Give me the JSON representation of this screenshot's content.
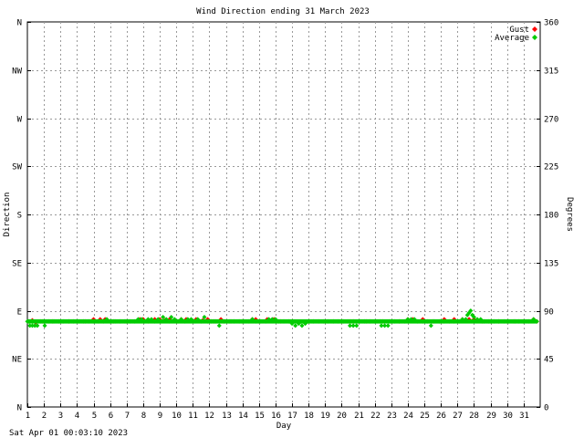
{
  "chart_data": {
    "type": "scatter",
    "title": "Wind Direction ending 31 March 2023",
    "xlabel": "Day",
    "ylabel_left": "Direction",
    "ylabel_right": "Degrees",
    "footer": "Sat Apr 01 00:03:10 2023",
    "xlim": [
      1,
      32
    ],
    "ylim": [
      0,
      360
    ],
    "x_ticks": [
      1,
      2,
      3,
      4,
      5,
      6,
      7,
      8,
      9,
      10,
      11,
      12,
      13,
      14,
      15,
      16,
      17,
      18,
      19,
      20,
      21,
      22,
      23,
      24,
      25,
      26,
      27,
      28,
      29,
      30,
      31
    ],
    "y_ticks_left": [
      {
        "value": 0,
        "label": "N"
      },
      {
        "value": 45,
        "label": "NE"
      },
      {
        "value": 90,
        "label": "E"
      },
      {
        "value": 135,
        "label": "SE"
      },
      {
        "value": 180,
        "label": "S"
      },
      {
        "value": 225,
        "label": "SW"
      },
      {
        "value": 270,
        "label": "W"
      },
      {
        "value": 315,
        "label": "NW"
      },
      {
        "value": 360,
        "label": "N"
      }
    ],
    "y_ticks_right": [
      0,
      45,
      90,
      135,
      180,
      225,
      270,
      315,
      360
    ],
    "grid": true,
    "legend_position": "top-right",
    "series": [
      {
        "name": "Gust",
        "color": "#ff0000",
        "points": [
          [
            1.1,
            80
          ],
          [
            1.3,
            81
          ],
          [
            1.5,
            79
          ],
          [
            1.9,
            80
          ],
          [
            2.5,
            80
          ],
          [
            3.5,
            80
          ],
          [
            4.5,
            80
          ],
          [
            5.0,
            82
          ],
          [
            5.4,
            82
          ],
          [
            5.7,
            82
          ],
          [
            6.2,
            80
          ],
          [
            7.0,
            80
          ],
          [
            7.8,
            82
          ],
          [
            8.0,
            82
          ],
          [
            8.3,
            80
          ],
          [
            8.5,
            81
          ],
          [
            8.7,
            82
          ],
          [
            9.0,
            82
          ],
          [
            9.3,
            81
          ],
          [
            9.6,
            82
          ],
          [
            10.0,
            80
          ],
          [
            10.3,
            82
          ],
          [
            10.6,
            82
          ],
          [
            10.9,
            81
          ],
          [
            11.2,
            82
          ],
          [
            11.6,
            81
          ],
          [
            11.9,
            82
          ],
          [
            12.3,
            80
          ],
          [
            12.7,
            82
          ],
          [
            13.3,
            80
          ],
          [
            14.0,
            80
          ],
          [
            14.6,
            82
          ],
          [
            14.8,
            82
          ],
          [
            15.0,
            80
          ],
          [
            15.5,
            82
          ],
          [
            15.9,
            82
          ],
          [
            16.3,
            80
          ],
          [
            17.0,
            80
          ],
          [
            18.0,
            80
          ],
          [
            19.0,
            80
          ],
          [
            20.0,
            80
          ],
          [
            20.5,
            80
          ],
          [
            20.7,
            80
          ],
          [
            21.5,
            80
          ],
          [
            22.5,
            80
          ],
          [
            23.5,
            80
          ],
          [
            24.0,
            82
          ],
          [
            24.3,
            82
          ],
          [
            24.9,
            82
          ],
          [
            25.5,
            80
          ],
          [
            26.2,
            82
          ],
          [
            26.8,
            82
          ],
          [
            27.3,
            82
          ],
          [
            27.7,
            82
          ],
          [
            28.0,
            82
          ],
          [
            28.5,
            80
          ],
          [
            29.0,
            80
          ],
          [
            29.5,
            80
          ],
          [
            30.0,
            80
          ],
          [
            30.5,
            80
          ],
          [
            31.0,
            80
          ],
          [
            31.6,
            82
          ],
          [
            31.8,
            80
          ]
        ]
      },
      {
        "name": "Average",
        "color": "#00cc00",
        "points": [
          [
            1.0,
            80
          ],
          [
            1.15,
            76
          ],
          [
            1.3,
            76
          ],
          [
            1.45,
            76
          ],
          [
            1.6,
            76
          ],
          [
            1.8,
            80
          ],
          [
            2.0,
            80
          ],
          [
            2.05,
            76
          ],
          [
            2.3,
            80
          ],
          [
            2.6,
            80
          ],
          [
            2.9,
            80
          ],
          [
            3.2,
            80
          ],
          [
            3.5,
            80
          ],
          [
            3.8,
            80
          ],
          [
            4.1,
            80
          ],
          [
            4.4,
            80
          ],
          [
            4.7,
            80
          ],
          [
            5.0,
            80
          ],
          [
            5.3,
            80
          ],
          [
            5.6,
            80
          ],
          [
            5.8,
            82
          ],
          [
            6.0,
            80
          ],
          [
            6.3,
            80
          ],
          [
            6.6,
            80
          ],
          [
            6.9,
            80
          ],
          [
            7.2,
            80
          ],
          [
            7.5,
            80
          ],
          [
            7.7,
            82
          ],
          [
            7.9,
            82
          ],
          [
            8.1,
            80
          ],
          [
            8.3,
            82
          ],
          [
            8.5,
            82
          ],
          [
            8.7,
            80
          ],
          [
            8.9,
            82
          ],
          [
            9.1,
            80
          ],
          [
            9.2,
            84
          ],
          [
            9.4,
            82
          ],
          [
            9.6,
            80
          ],
          [
            9.7,
            84
          ],
          [
            9.9,
            82
          ],
          [
            10.1,
            80
          ],
          [
            10.3,
            82
          ],
          [
            10.5,
            80
          ],
          [
            10.7,
            82
          ],
          [
            10.9,
            82
          ],
          [
            11.1,
            80
          ],
          [
            11.3,
            82
          ],
          [
            11.5,
            80
          ],
          [
            11.7,
            84
          ],
          [
            11.9,
            80
          ],
          [
            12.1,
            80
          ],
          [
            12.4,
            80
          ],
          [
            12.6,
            76
          ],
          [
            12.9,
            80
          ],
          [
            13.2,
            80
          ],
          [
            13.5,
            80
          ],
          [
            13.8,
            80
          ],
          [
            14.1,
            80
          ],
          [
            14.4,
            80
          ],
          [
            14.6,
            82
          ],
          [
            14.8,
            80
          ],
          [
            15.1,
            80
          ],
          [
            15.4,
            80
          ],
          [
            15.6,
            82
          ],
          [
            15.8,
            82
          ],
          [
            16.0,
            82
          ],
          [
            16.2,
            80
          ],
          [
            16.5,
            80
          ],
          [
            16.8,
            80
          ],
          [
            17.0,
            78
          ],
          [
            17.2,
            76
          ],
          [
            17.4,
            78
          ],
          [
            17.6,
            76
          ],
          [
            17.8,
            78
          ],
          [
            18.0,
            80
          ],
          [
            18.3,
            80
          ],
          [
            18.6,
            80
          ],
          [
            18.9,
            80
          ],
          [
            19.2,
            80
          ],
          [
            19.5,
            80
          ],
          [
            19.8,
            80
          ],
          [
            20.1,
            80
          ],
          [
            20.4,
            80
          ],
          [
            20.5,
            76
          ],
          [
            20.7,
            76
          ],
          [
            20.9,
            76
          ],
          [
            21.1,
            80
          ],
          [
            21.4,
            80
          ],
          [
            21.7,
            80
          ],
          [
            22.0,
            80
          ],
          [
            22.3,
            80
          ],
          [
            22.4,
            76
          ],
          [
            22.6,
            76
          ],
          [
            22.8,
            76
          ],
          [
            22.9,
            80
          ],
          [
            23.2,
            80
          ],
          [
            23.5,
            80
          ],
          [
            23.8,
            80
          ],
          [
            24.0,
            82
          ],
          [
            24.2,
            82
          ],
          [
            24.4,
            82
          ],
          [
            24.6,
            80
          ],
          [
            24.9,
            80
          ],
          [
            25.2,
            80
          ],
          [
            25.4,
            76
          ],
          [
            25.6,
            80
          ],
          [
            25.9,
            80
          ],
          [
            26.2,
            80
          ],
          [
            26.5,
            80
          ],
          [
            26.8,
            80
          ],
          [
            27.1,
            80
          ],
          [
            27.3,
            82
          ],
          [
            27.5,
            82
          ],
          [
            27.6,
            86
          ],
          [
            27.7,
            88
          ],
          [
            27.8,
            90
          ],
          [
            27.9,
            86
          ],
          [
            28.0,
            84
          ],
          [
            28.2,
            82
          ],
          [
            28.4,
            82
          ],
          [
            28.6,
            80
          ],
          [
            28.9,
            80
          ],
          [
            29.2,
            80
          ],
          [
            29.5,
            80
          ],
          [
            29.8,
            80
          ],
          [
            30.1,
            80
          ],
          [
            30.4,
            80
          ],
          [
            30.7,
            80
          ],
          [
            31.0,
            80
          ],
          [
            31.3,
            80
          ],
          [
            31.6,
            82
          ],
          [
            31.8,
            80
          ]
        ]
      }
    ]
  }
}
